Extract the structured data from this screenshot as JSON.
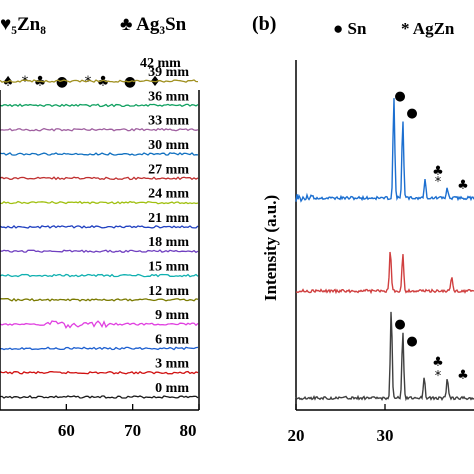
{
  "chart_data": [
    {
      "type": "line",
      "panel_label": "",
      "legend_text": [
        "♥₅Zn₈",
        "♣ Ag₃Sn"
      ],
      "x_ticks": [
        60,
        70,
        80
      ],
      "x_range": [
        50,
        80
      ],
      "series_colors": [
        "#1a1a1a",
        "#d01010",
        "#1c5fd0",
        "#e040e0",
        "#7a7a00",
        "#10b0b0",
        "#7040c0",
        "#2040c0",
        "#a0c010",
        "#c03030",
        "#1070c0",
        "#a060a0",
        "#10a060",
        "#a09020"
      ],
      "series": [
        {
          "name": "0 mm",
          "color": "#1a1a1a"
        },
        {
          "name": "3 mm",
          "color": "#d01010"
        },
        {
          "name": "6 mm",
          "color": "#1c5fd0"
        },
        {
          "name": "9 mm",
          "color": "#e040e0"
        },
        {
          "name": "12 mm",
          "color": "#7a7a00"
        },
        {
          "name": "15 mm",
          "color": "#10b0b0"
        },
        {
          "name": "18 mm",
          "color": "#7040c0"
        },
        {
          "name": "21 mm",
          "color": "#2040c0"
        },
        {
          "name": "24 mm",
          "color": "#a0c010"
        },
        {
          "name": "27 mm",
          "color": "#c03030"
        },
        {
          "name": "30 mm",
          "color": "#1070c0"
        },
        {
          "name": "33 mm",
          "color": "#a060a0"
        },
        {
          "name": "36 mm",
          "color": "#10a060"
        },
        {
          "name": "39 mm",
          "color": "#a09020"
        }
      ],
      "extra_label": "42 mm",
      "peak_symbols": [
        "♠",
        "*",
        "♣",
        "●",
        "*",
        "♣",
        "●",
        "♦"
      ],
      "xlabel": "",
      "ylabel": ""
    },
    {
      "type": "line",
      "panel_label": "(b)",
      "legend_text": [
        "● Sn",
        "* AgZn"
      ],
      "ylabel": "Intensity (a.u.)",
      "x_ticks": [
        20,
        30
      ],
      "x_range": [
        20,
        40
      ],
      "series": [
        {
          "color": "#1c6fd0",
          "peaks_2theta": [
            31.0,
            32.0,
            34.5,
            37.0
          ]
        },
        {
          "color": "#d04040",
          "peaks_2theta": [
            30.6,
            32.0,
            37.5
          ]
        },
        {
          "color": "#404040",
          "peaks_2theta": [
            30.7,
            32.0,
            34.4,
            37.0
          ]
        }
      ],
      "peak_markers_top": [
        "●",
        "●",
        "♣",
        "*",
        "♣"
      ],
      "peak_markers_bottom": [
        "●",
        "●",
        "♣",
        "*",
        "♣"
      ]
    }
  ]
}
